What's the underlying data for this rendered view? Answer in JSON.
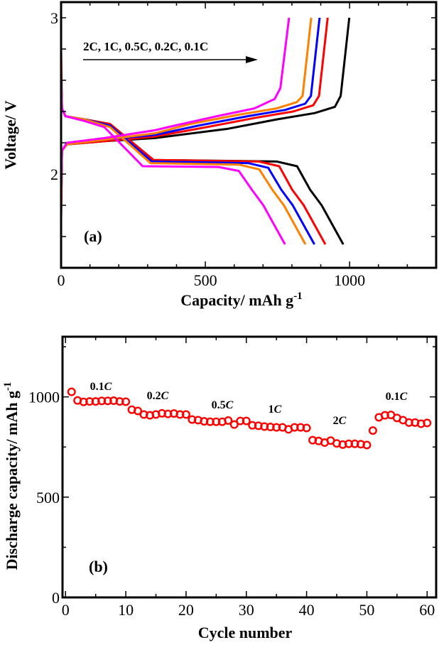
{
  "chart_data": [
    {
      "type": "line",
      "panel_label": "(a)",
      "xlabel": "Capacity/ mAh g",
      "xlabel_sup": "-1",
      "ylabel": "Voltage/ V",
      "xlim": [
        0,
        1300
      ],
      "ylim": [
        1.4,
        3.1
      ],
      "x_tick_labels": [
        "0",
        "500",
        "1000"
      ],
      "y_tick_labels": [
        "2",
        "3"
      ],
      "grid": false,
      "annotation": "2C, 1C, 0.5C, 0.2C, 0.1C",
      "series": [
        {
          "color": "#000000",
          "discharge": [
            [
              0,
              2.6
            ],
            [
              3,
              2.42
            ],
            [
              15,
              2.37
            ],
            [
              80,
              2.35
            ],
            [
              170,
              2.32
            ],
            [
              320,
              2.09
            ],
            [
              748,
              2.08
            ],
            [
              818,
              2.05
            ],
            [
              863,
              1.9
            ],
            [
              903,
              1.8
            ],
            [
              978,
              1.55
            ]
          ],
          "charge": [
            [
              0,
              1.75
            ],
            [
              3,
              2.15
            ],
            [
              20,
              2.19
            ],
            [
              150,
              2.21
            ],
            [
              325,
              2.23
            ],
            [
              579,
              2.29
            ],
            [
              749,
              2.35
            ],
            [
              879,
              2.39
            ],
            [
              949,
              2.43
            ],
            [
              969,
              2.5
            ],
            [
              999,
              3.0
            ]
          ]
        },
        {
          "color": "#ff0000",
          "discharge": [
            [
              0,
              2.8
            ],
            [
              3,
              2.42
            ],
            [
              15,
              2.37
            ],
            [
              80,
              2.35
            ],
            [
              170,
              2.32
            ],
            [
              320,
              2.09
            ],
            [
              686,
              2.08
            ],
            [
              756,
              2.05
            ],
            [
              801,
              1.9
            ],
            [
              841,
              1.8
            ],
            [
              916,
              1.55
            ]
          ],
          "charge": [
            [
              0,
              1.7
            ],
            [
              3,
              2.15
            ],
            [
              20,
              2.19
            ],
            [
              150,
              2.21
            ],
            [
              325,
              2.24
            ],
            [
              504,
              2.3
            ],
            [
              674,
              2.36
            ],
            [
              804,
              2.4
            ],
            [
              874,
              2.44
            ],
            [
              894,
              2.5
            ],
            [
              924,
              3.0
            ]
          ]
        },
        {
          "color": "#0000ff",
          "discharge": [
            [
              0,
              2.65
            ],
            [
              3,
              2.42
            ],
            [
              15,
              2.37
            ],
            [
              80,
              2.35
            ],
            [
              170,
              2.31
            ],
            [
              315,
              2.08
            ],
            [
              648,
              2.07
            ],
            [
              718,
              2.04
            ],
            [
              763,
              1.9
            ],
            [
              803,
              1.8
            ],
            [
              878,
              1.55
            ]
          ],
          "charge": [
            [
              0,
              1.9
            ],
            [
              3,
              2.15
            ],
            [
              20,
              2.19
            ],
            [
              150,
              2.22
            ],
            [
              325,
              2.25
            ],
            [
              476,
              2.31
            ],
            [
              646,
              2.37
            ],
            [
              776,
              2.41
            ],
            [
              846,
              2.45
            ],
            [
              866,
              2.5
            ],
            [
              896,
              3.0
            ]
          ]
        },
        {
          "color": "#ff8000",
          "discharge": [
            [
              0,
              2.58
            ],
            [
              3,
              2.42
            ],
            [
              15,
              2.37
            ],
            [
              80,
              2.35
            ],
            [
              170,
              2.3
            ],
            [
              310,
              2.07
            ],
            [
              617,
              2.06
            ],
            [
              687,
              2.03
            ],
            [
              732,
              1.9
            ],
            [
              772,
              1.8
            ],
            [
              847,
              1.55
            ]
          ],
          "charge": [
            [
              0,
              1.95
            ],
            [
              3,
              2.15
            ],
            [
              20,
              2.19
            ],
            [
              150,
              2.22
            ],
            [
              325,
              2.26
            ],
            [
              447,
              2.32
            ],
            [
              617,
              2.38
            ],
            [
              747,
              2.42
            ],
            [
              817,
              2.46
            ],
            [
              837,
              2.5
            ],
            [
              867,
              3.0
            ]
          ]
        },
        {
          "color": "#ff00ff",
          "discharge": [
            [
              0,
              2.55
            ],
            [
              3,
              2.42
            ],
            [
              15,
              2.37
            ],
            [
              80,
              2.34
            ],
            [
              150,
              2.3
            ],
            [
              283,
              2.05
            ],
            [
              546,
              2.045
            ],
            [
              616,
              2.02
            ],
            [
              661,
              1.9
            ],
            [
              701,
              1.8
            ],
            [
              776,
              1.55
            ]
          ],
          "charge": [
            [
              0,
              1.95
            ],
            [
              3,
              2.15
            ],
            [
              20,
              2.2
            ],
            [
              150,
              2.23
            ],
            [
              325,
              2.28
            ],
            [
              370,
              2.3
            ],
            [
              540,
              2.37
            ],
            [
              670,
              2.42
            ],
            [
              740,
              2.48
            ],
            [
              760,
              2.55
            ],
            [
              790,
              3.0
            ]
          ]
        }
      ]
    },
    {
      "type": "scatter",
      "panel_label": "(b)",
      "xlabel": "Cycle number",
      "ylabel": "Discharge capacity/ mAh g",
      "ylabel_sup": "-1",
      "xlim": [
        -0.5,
        61.5
      ],
      "ylim": [
        0,
        1300
      ],
      "x_tick_labels": [
        "0",
        "10",
        "20",
        "30",
        "40",
        "50",
        "60"
      ],
      "y_tick_labels": [
        "0",
        "500",
        "1000"
      ],
      "grid": false,
      "marker_color": "#ff0000",
      "rate_labels": [
        "0.1C",
        "0.2C",
        "0.5C",
        "1C",
        "2C",
        "0.1C"
      ],
      "x": [
        1,
        2,
        3,
        4,
        5,
        6,
        7,
        8,
        9,
        10,
        11,
        12,
        13,
        14,
        15,
        16,
        17,
        18,
        19,
        20,
        21,
        22,
        23,
        24,
        25,
        26,
        27,
        28,
        29,
        30,
        31,
        32,
        33,
        34,
        35,
        36,
        37,
        38,
        39,
        40,
        41,
        42,
        43,
        44,
        45,
        46,
        47,
        48,
        49,
        50,
        51,
        52,
        53,
        54,
        55,
        56,
        57,
        58,
        59,
        60
      ],
      "y": [
        1025,
        982,
        975,
        977,
        977,
        980,
        980,
        981,
        977,
        976,
        936,
        930,
        912,
        908,
        912,
        918,
        915,
        917,
        912,
        912,
        887,
        884,
        878,
        876,
        876,
        876,
        882,
        862,
        880,
        880,
        858,
        856,
        852,
        850,
        848,
        848,
        838,
        848,
        848,
        845,
        784,
        780,
        772,
        782,
        768,
        762,
        766,
        766,
        764,
        760,
        832,
        898,
        908,
        910,
        895,
        884,
        872,
        872,
        866,
        870
      ]
    }
  ]
}
